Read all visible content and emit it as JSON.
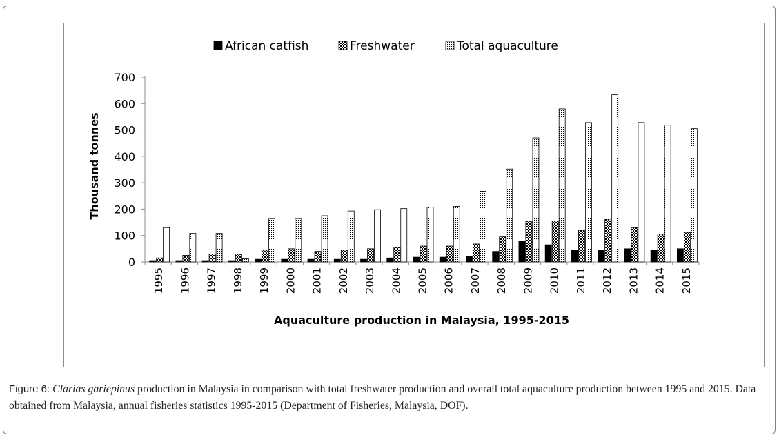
{
  "caption": {
    "label": "Figure 6:",
    "species": "Clarias gariepinus",
    "text": " production in Malaysia in comparison with total freshwater production and overall total aquaculture production between 1995 and 2015. Data obtained from Malaysia, annual fisheries statistics 1995-2015 (Department of Fisheries, Malaysia, DOF)."
  },
  "chart_data": {
    "type": "bar",
    "title": "",
    "xlabel": "Aquaculture production in Malaysia,  1995-2015",
    "ylabel": "Thousand tonnes",
    "ylim": [
      0,
      700
    ],
    "yticks": [
      0,
      100,
      200,
      300,
      400,
      500,
      600,
      700
    ],
    "legend_position": "top",
    "grid": false,
    "categories": [
      "1995",
      "1996",
      "1997",
      "1998",
      "1999",
      "2000",
      "2001",
      "2002",
      "2003",
      "2004",
      "2005",
      "2006",
      "2007",
      "2008",
      "2009",
      "2010",
      "2011",
      "2012",
      "2013",
      "2014",
      "2015"
    ],
    "series": [
      {
        "name": "African catfish",
        "pattern": "solid",
        "values": [
          5,
          5,
          5,
          5,
          10,
          10,
          10,
          10,
          10,
          15,
          18,
          18,
          20,
          40,
          80,
          65,
          45,
          45,
          50,
          45,
          50
        ]
      },
      {
        "name": "Freshwater",
        "pattern": "checker",
        "values": [
          15,
          25,
          30,
          30,
          45,
          50,
          40,
          45,
          50,
          55,
          60,
          60,
          68,
          95,
          155,
          155,
          120,
          162,
          130,
          105,
          112
        ]
      },
      {
        "name": "Total aquaculture",
        "pattern": "dots",
        "values": [
          130,
          108,
          108,
          12,
          165,
          165,
          175,
          193,
          198,
          202,
          208,
          210,
          268,
          352,
          470,
          580,
          528,
          633,
          528,
          518,
          505
        ]
      }
    ]
  }
}
